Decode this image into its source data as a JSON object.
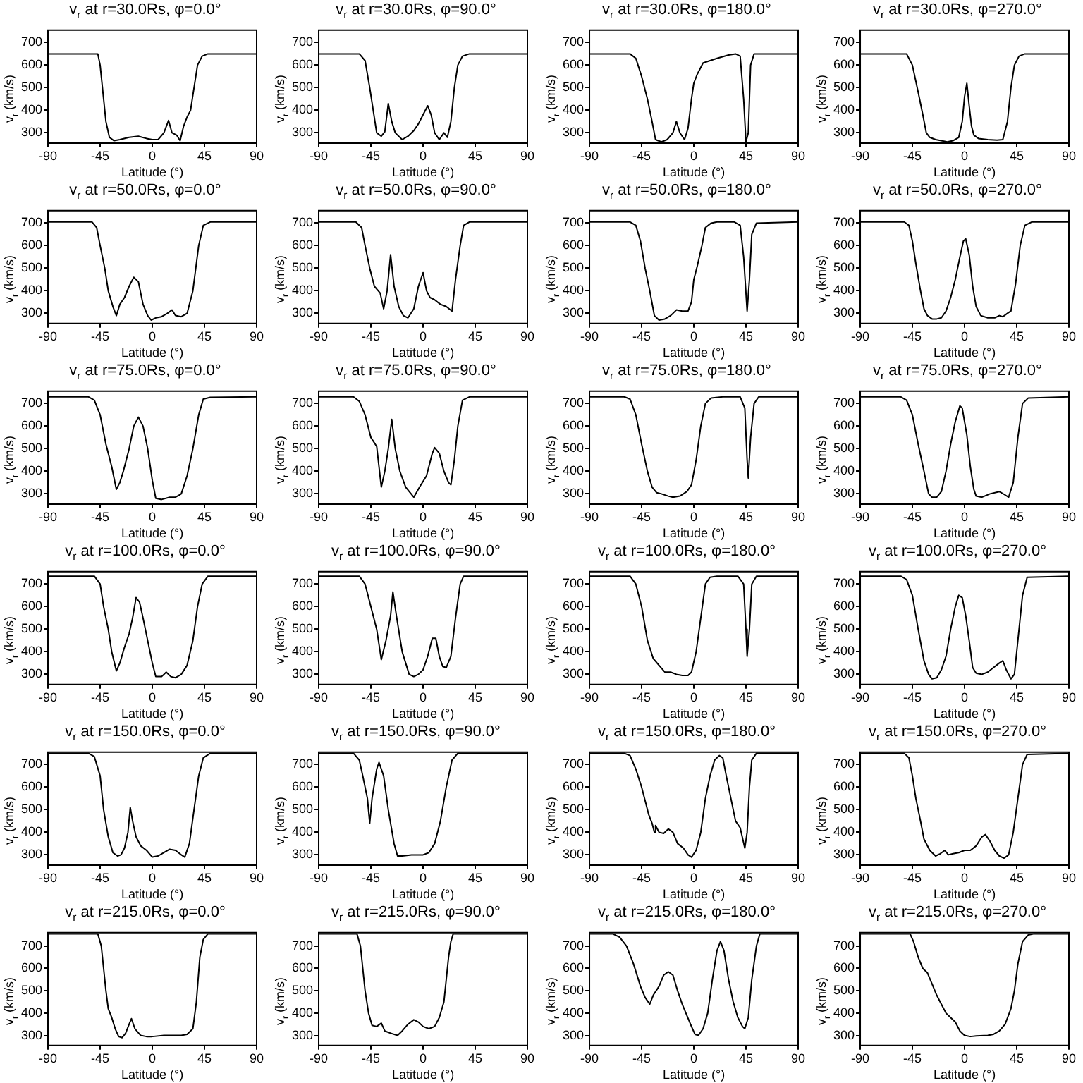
{
  "chart_data": [
    {
      "type": "line",
      "title": "v$_{r}$ at r=30.0Rs, φ=0.0°",
      "xlabel": "Latitude (°)",
      "ylabel": "v$_{r}$ (km/s)",
      "xlim": [
        -90,
        90
      ],
      "xticks": [
        -90,
        -45,
        0,
        45,
        90
      ],
      "ylim": [
        255,
        755
      ],
      "yticks": [
        300,
        400,
        500,
        600,
        700
      ],
      "series": [
        {
          "color": "#000000",
          "x": [
            -90,
            -47,
            -45,
            -42,
            -40,
            -37,
            -33,
            -28,
            -20,
            -12,
            -5,
            0,
            5,
            10,
            14,
            17,
            21,
            24,
            27,
            30,
            33,
            36,
            39,
            43,
            48,
            90
          ],
          "values": [
            650,
            650,
            600,
            450,
            350,
            280,
            265,
            270,
            280,
            285,
            275,
            270,
            270,
            300,
            355,
            300,
            290,
            265,
            330,
            370,
            400,
            500,
            600,
            640,
            650,
            650
          ]
        }
      ]
    },
    {
      "type": "line",
      "title": "v$_{r}$ at r=30.0Rs, φ=90.0°",
      "xlabel": "Latitude (°)",
      "ylabel": "v$_{r}$ (km/s)",
      "xlim": [
        -90,
        90
      ],
      "xticks": [
        -90,
        -45,
        0,
        45,
        90
      ],
      "ylim": [
        255,
        755
      ],
      "yticks": [
        300,
        400,
        500,
        600,
        700
      ],
      "series": [
        {
          "color": "#000000",
          "x": [
            -90,
            -55,
            -50,
            -46,
            -43,
            -40,
            -36,
            -33,
            -30,
            -27,
            -24,
            -18,
            -13,
            -8,
            -4,
            0,
            4,
            7,
            10,
            14,
            18,
            21,
            24,
            27,
            30,
            34,
            40,
            90
          ],
          "values": [
            650,
            650,
            620,
            500,
            400,
            300,
            285,
            305,
            430,
            350,
            300,
            270,
            285,
            310,
            340,
            380,
            420,
            380,
            300,
            270,
            300,
            280,
            350,
            500,
            600,
            640,
            650,
            650
          ]
        }
      ]
    },
    {
      "type": "line",
      "title": "v$_{r}$ at r=30.0Rs, φ=180.0°",
      "xlabel": "Latitude (°)",
      "ylabel": "v$_{r}$ (km/s)",
      "xlim": [
        -90,
        90
      ],
      "xticks": [
        -90,
        -45,
        0,
        45,
        90
      ],
      "ylim": [
        255,
        755
      ],
      "yticks": [
        300,
        400,
        500,
        600,
        700
      ],
      "series": [
        {
          "color": "#000000",
          "x": [
            -90,
            -55,
            -50,
            -45,
            -40,
            -36,
            -33,
            -28,
            -23,
            -18,
            -15,
            -12,
            -8,
            -5,
            -2,
            0,
            3,
            8,
            20,
            30,
            36,
            40,
            43,
            45,
            47,
            49,
            52,
            90
          ],
          "values": [
            650,
            650,
            630,
            550,
            450,
            350,
            270,
            260,
            270,
            300,
            350,
            300,
            270,
            320,
            450,
            520,
            560,
            610,
            630,
            645,
            650,
            640,
            450,
            260,
            300,
            600,
            650,
            650
          ]
        }
      ]
    },
    {
      "type": "line",
      "title": "v$_{r}$ at r=30.0Rs, φ=270.0°",
      "xlabel": "Latitude (°)",
      "ylabel": "v$_{r}$ (km/s)",
      "xlim": [
        -90,
        90
      ],
      "xticks": [
        -90,
        -45,
        0,
        45,
        90
      ],
      "ylim": [
        255,
        755
      ],
      "yticks": [
        300,
        400,
        500,
        600,
        700
      ],
      "series": [
        {
          "color": "#000000",
          "x": [
            -90,
            -50,
            -45,
            -40,
            -36,
            -33,
            -30,
            -25,
            -20,
            -15,
            -10,
            -5,
            -2,
            0,
            2,
            4,
            6,
            8,
            12,
            20,
            28,
            33,
            37,
            40,
            43,
            47,
            52,
            90
          ],
          "values": [
            650,
            650,
            600,
            480,
            380,
            300,
            280,
            270,
            265,
            260,
            265,
            280,
            350,
            460,
            520,
            420,
            330,
            290,
            275,
            270,
            268,
            270,
            350,
            500,
            600,
            640,
            650,
            650
          ]
        }
      ]
    },
    {
      "type": "line",
      "title": "v$_{r}$ at r=50.0Rs, φ=0.0°",
      "xlabel": "Latitude (°)",
      "ylabel": "v$_{r}$ (km/s)",
      "xlim": [
        -90,
        90
      ],
      "xticks": [
        -90,
        -45,
        0,
        45,
        90
      ],
      "ylim": [
        255,
        755
      ],
      "yticks": [
        300,
        400,
        500,
        600,
        700
      ],
      "series": [
        {
          "color": "#000000",
          "x": [
            -90,
            -52,
            -48,
            -45,
            -41,
            -38,
            -34,
            -31,
            -28,
            -24,
            -20,
            -16,
            -12,
            -8,
            -4,
            -1,
            3,
            8,
            13,
            17,
            20,
            25,
            30,
            35,
            40,
            44,
            50,
            90
          ],
          "values": [
            705,
            705,
            680,
            600,
            500,
            400,
            330,
            290,
            340,
            370,
            420,
            460,
            440,
            340,
            290,
            270,
            280,
            285,
            300,
            315,
            290,
            285,
            300,
            400,
            600,
            690,
            705,
            705
          ]
        }
      ]
    },
    {
      "type": "line",
      "title": "v$_{r}$ at r=50.0Rs, φ=90.0°",
      "xlabel": "Latitude (°)",
      "ylabel": "v$_{r}$ (km/s)",
      "xlim": [
        -90,
        90
      ],
      "xticks": [
        -90,
        -45,
        0,
        45,
        90
      ],
      "ylim": [
        255,
        755
      ],
      "yticks": [
        300,
        400,
        500,
        600,
        700
      ],
      "series": [
        {
          "color": "#000000",
          "x": [
            -90,
            -58,
            -53,
            -50,
            -46,
            -42,
            -37,
            -34,
            -31,
            -28,
            -25,
            -21,
            -17,
            -13,
            -8,
            -4,
            0,
            3,
            6,
            10,
            15,
            20,
            25,
            28,
            32,
            35,
            40,
            90
          ],
          "values": [
            705,
            705,
            680,
            600,
            500,
            420,
            390,
            320,
            400,
            560,
            420,
            330,
            290,
            280,
            320,
            420,
            480,
            400,
            370,
            360,
            340,
            330,
            310,
            450,
            600,
            690,
            705,
            705
          ]
        }
      ]
    },
    {
      "type": "line",
      "title": "v$_{r}$ at r=50.0Rs, φ=180.0°",
      "xlabel": "Latitude (°)",
      "ylabel": "v$_{r}$ (km/s)",
      "xlim": [
        -90,
        90
      ],
      "xticks": [
        -90,
        -45,
        0,
        45,
        90
      ],
      "ylim": [
        255,
        755
      ],
      "yticks": [
        300,
        400,
        500,
        600,
        700
      ],
      "series": [
        {
          "color": "#000000",
          "x": [
            -90,
            -55,
            -50,
            -46,
            -42,
            -38,
            -34,
            -30,
            -25,
            -20,
            -15,
            -10,
            -5,
            -2,
            0,
            3,
            7,
            10,
            15,
            20,
            35,
            40,
            43,
            46,
            48,
            50,
            54,
            90
          ],
          "values": [
            705,
            705,
            690,
            620,
            500,
            400,
            290,
            270,
            275,
            290,
            315,
            310,
            310,
            350,
            450,
            510,
            600,
            680,
            700,
            705,
            705,
            690,
            550,
            310,
            450,
            650,
            700,
            705
          ]
        }
      ]
    },
    {
      "type": "line",
      "title": "v$_{r}$ at r=50.0Rs, φ=270.0°",
      "xlabel": "Latitude (°)",
      "ylabel": "v$_{r}$ (km/s)",
      "xlim": [
        -90,
        90
      ],
      "xticks": [
        -90,
        -45,
        0,
        45,
        90
      ],
      "ylim": [
        255,
        755
      ],
      "yticks": [
        300,
        400,
        500,
        600,
        700
      ],
      "series": [
        {
          "color": "#000000",
          "x": [
            -90,
            -52,
            -48,
            -45,
            -42,
            -38,
            -35,
            -32,
            -28,
            -24,
            -20,
            -16,
            -12,
            -8,
            -4,
            -1,
            1,
            4,
            7,
            10,
            14,
            20,
            26,
            30,
            33,
            37,
            40,
            44,
            48,
            52,
            58,
            90
          ],
          "values": [
            705,
            705,
            690,
            620,
            520,
            400,
            320,
            290,
            275,
            275,
            280,
            310,
            370,
            450,
            550,
            620,
            630,
            560,
            420,
            330,
            290,
            280,
            280,
            290,
            285,
            300,
            310,
            430,
            600,
            690,
            705,
            705
          ]
        }
      ]
    },
    {
      "type": "line",
      "title": "v$_{r}$ at r=75.0Rs, φ=0.0°",
      "xlabel": "Latitude (°)",
      "ylabel": "v$_{r}$ (km/s)",
      "xlim": [
        -90,
        90
      ],
      "xticks": [
        -90,
        -45,
        0,
        45,
        90
      ],
      "ylim": [
        255,
        755
      ],
      "yticks": [
        300,
        400,
        500,
        600,
        700
      ],
      "series": [
        {
          "color": "#000000",
          "x": [
            -90,
            -55,
            -50,
            -45,
            -40,
            -35,
            -31,
            -28,
            -25,
            -20,
            -16,
            -12,
            -8,
            -4,
            0,
            3,
            8,
            15,
            20,
            25,
            30,
            35,
            40,
            44,
            50,
            90
          ],
          "values": [
            730,
            730,
            715,
            650,
            520,
            420,
            320,
            350,
            400,
            500,
            600,
            640,
            600,
            500,
            360,
            280,
            275,
            285,
            285,
            300,
            380,
            500,
            650,
            720,
            728,
            730
          ]
        }
      ]
    },
    {
      "type": "line",
      "title": "v$_{r}$ at r=75.0Rs, φ=90.0°",
      "xlabel": "Latitude (°)",
      "ylabel": "v$_{r}$ (km/s)",
      "xlim": [
        -90,
        90
      ],
      "xticks": [
        -90,
        -45,
        0,
        45,
        90
      ],
      "ylim": [
        255,
        755
      ],
      "yticks": [
        300,
        400,
        500,
        600,
        700
      ],
      "series": [
        {
          "color": "#000000",
          "x": [
            -90,
            -60,
            -55,
            -50,
            -45,
            -40,
            -36,
            -33,
            -30,
            -27,
            -24,
            -20,
            -15,
            -8,
            -3,
            3,
            8,
            10,
            14,
            18,
            22,
            24,
            27,
            30,
            34,
            40,
            90
          ],
          "values": [
            730,
            730,
            710,
            650,
            550,
            510,
            330,
            400,
            500,
            630,
            500,
            400,
            330,
            285,
            330,
            380,
            480,
            505,
            480,
            400,
            350,
            340,
            450,
            600,
            715,
            730,
            730
          ]
        }
      ]
    },
    {
      "type": "line",
      "title": "v$_{r}$ at r=75.0Rs, φ=180.0°",
      "xlabel": "Latitude (°)",
      "ylabel": "v$_{r}$ (km/s)",
      "xlim": [
        -90,
        90
      ],
      "xticks": [
        -90,
        -45,
        0,
        45,
        90
      ],
      "ylim": [
        255,
        755
      ],
      "yticks": [
        300,
        400,
        500,
        600,
        700
      ],
      "series": [
        {
          "color": "#000000",
          "x": [
            -90,
            -60,
            -55,
            -50,
            -45,
            -40,
            -36,
            -32,
            -28,
            -22,
            -18,
            -12,
            -6,
            -2,
            2,
            6,
            10,
            15,
            25,
            40,
            44,
            46,
            47,
            49,
            52,
            56,
            90
          ],
          "values": [
            730,
            730,
            720,
            650,
            520,
            400,
            330,
            305,
            300,
            290,
            285,
            290,
            310,
            340,
            450,
            600,
            700,
            725,
            730,
            730,
            680,
            450,
            370,
            550,
            700,
            730,
            730
          ]
        }
      ]
    },
    {
      "type": "line",
      "title": "v$_{r}$ at r=75.0Rs, φ=270.0°",
      "xlabel": "Latitude (°)",
      "ylabel": "v$_{r}$ (km/s)",
      "xlim": [
        -90,
        90
      ],
      "xticks": [
        -90,
        -45,
        0,
        45,
        90
      ],
      "ylim": [
        255,
        755
      ],
      "yticks": [
        300,
        400,
        500,
        600,
        700
      ],
      "series": [
        {
          "color": "#000000",
          "x": [
            -90,
            -55,
            -50,
            -45,
            -40,
            -35,
            -31,
            -28,
            -24,
            -20,
            -16,
            -12,
            -8,
            -4,
            -2,
            2,
            5,
            8,
            10,
            15,
            22,
            30,
            35,
            38,
            42,
            46,
            50,
            55,
            90
          ],
          "values": [
            730,
            730,
            715,
            650,
            520,
            400,
            300,
            285,
            285,
            310,
            400,
            520,
            620,
            690,
            680,
            560,
            420,
            320,
            290,
            285,
            300,
            310,
            295,
            285,
            350,
            550,
            700,
            725,
            730
          ]
        }
      ]
    },
    {
      "type": "line",
      "title": "v$_{r}$ at r=100.0Rs, φ=0.0°",
      "xlabel": "Latitude (°)",
      "ylabel": "v$_{r}$ (km/s)",
      "xlim": [
        -90,
        90
      ],
      "xticks": [
        -90,
        -45,
        0,
        45,
        90
      ],
      "ylim": [
        255,
        755
      ],
      "yticks": [
        300,
        400,
        500,
        600,
        700
      ],
      "series": [
        {
          "color": "#000000",
          "x": [
            -90,
            -50,
            -45,
            -42,
            -38,
            -35,
            -31,
            -28,
            -24,
            -20,
            -17,
            -14,
            -11,
            -8,
            -4,
            0,
            3,
            8,
            12,
            16,
            20,
            25,
            30,
            35,
            39,
            43,
            48,
            90
          ],
          "values": [
            735,
            735,
            700,
            600,
            500,
            400,
            315,
            350,
            420,
            480,
            550,
            640,
            620,
            550,
            450,
            350,
            290,
            290,
            310,
            290,
            285,
            300,
            340,
            450,
            600,
            700,
            735,
            735
          ]
        }
      ]
    },
    {
      "type": "line",
      "title": "v$_{r}$ at r=100.0Rs, φ=90.0°",
      "xlabel": "Latitude (°)",
      "ylabel": "v$_{r}$ (km/s)",
      "xlim": [
        -90,
        90
      ],
      "xticks": [
        -90,
        -45,
        0,
        45,
        90
      ],
      "ylim": [
        255,
        755
      ],
      "yticks": [
        300,
        400,
        500,
        600,
        700
      ],
      "series": [
        {
          "color": "#000000",
          "x": [
            -90,
            -55,
            -50,
            -45,
            -40,
            -36,
            -32,
            -28,
            -26,
            -23,
            -18,
            -12,
            -8,
            -4,
            0,
            4,
            8,
            11,
            14,
            17,
            20,
            24,
            28,
            32,
            35,
            90
          ],
          "values": [
            735,
            735,
            700,
            600,
            500,
            365,
            450,
            560,
            665,
            560,
            400,
            300,
            290,
            300,
            320,
            380,
            460,
            460,
            380,
            335,
            330,
            380,
            550,
            700,
            735,
            735
          ]
        }
      ]
    },
    {
      "type": "line",
      "title": "v$_{r}$ at r=100.0Rs, φ=180.0°",
      "xlabel": "Latitude (°)",
      "ylabel": "v$_{r}$ (km/s)",
      "xlim": [
        -90,
        90
      ],
      "xticks": [
        -90,
        -45,
        0,
        45,
        90
      ],
      "ylim": [
        255,
        755
      ],
      "yticks": [
        300,
        400,
        500,
        600,
        700
      ],
      "series": [
        {
          "color": "#000000",
          "x": [
            -90,
            -55,
            -50,
            -45,
            -40,
            -35,
            -30,
            -25,
            -20,
            -15,
            -10,
            -5,
            -2,
            2,
            6,
            10,
            14,
            20,
            38,
            43,
            45,
            46,
            48,
            50,
            54,
            90
          ],
          "values": [
            735,
            735,
            700,
            600,
            450,
            370,
            340,
            310,
            310,
            300,
            295,
            295,
            310,
            400,
            550,
            700,
            730,
            735,
            735,
            700,
            500,
            380,
            500,
            700,
            735,
            735
          ]
        }
      ]
    },
    {
      "type": "line",
      "title": "v$_{r}$ at r=100.0Rs, φ=270.0°",
      "xlabel": "Latitude (°)",
      "ylabel": "v$_{r}$ (km/s)",
      "xlim": [
        -90,
        90
      ],
      "xticks": [
        -90,
        -45,
        0,
        45,
        90
      ],
      "ylim": [
        255,
        755
      ],
      "yticks": [
        300,
        400,
        500,
        600,
        700
      ],
      "series": [
        {
          "color": "#000000",
          "x": [
            -90,
            -55,
            -50,
            -45,
            -40,
            -35,
            -31,
            -28,
            -24,
            -20,
            -16,
            -12,
            -8,
            -5,
            -2,
            1,
            4,
            7,
            10,
            15,
            20,
            25,
            30,
            33,
            36,
            40,
            43,
            46,
            50,
            54,
            90
          ],
          "values": [
            735,
            735,
            720,
            650,
            500,
            360,
            300,
            280,
            285,
            320,
            380,
            500,
            600,
            650,
            640,
            560,
            450,
            330,
            305,
            300,
            310,
            330,
            350,
            360,
            320,
            280,
            300,
            450,
            650,
            730,
            735
          ]
        }
      ]
    },
    {
      "type": "line",
      "title": "v$_{r}$ at r=150.0Rs, φ=0.0°",
      "xlabel": "Latitude (°)",
      "ylabel": "v$_{r}$ (km/s)",
      "xlim": [
        -90,
        90
      ],
      "xticks": [
        -90,
        -45,
        0,
        45,
        90
      ],
      "ylim": [
        255,
        755
      ],
      "yticks": [
        300,
        400,
        500,
        600,
        700
      ],
      "series": [
        {
          "color": "#000000",
          "x": [
            -90,
            -55,
            -50,
            -45,
            -42,
            -38,
            -34,
            -30,
            -27,
            -24,
            -21,
            -19,
            -17,
            -14,
            -10,
            -5,
            0,
            5,
            10,
            15,
            20,
            25,
            28,
            32,
            36,
            40,
            44,
            50,
            90
          ],
          "values": [
            750,
            750,
            735,
            650,
            500,
            380,
            310,
            295,
            300,
            330,
            400,
            510,
            450,
            380,
            340,
            320,
            290,
            295,
            310,
            325,
            320,
            300,
            290,
            350,
            500,
            650,
            730,
            750,
            750
          ]
        }
      ]
    },
    {
      "type": "line",
      "title": "v$_{r}$ at r=150.0Rs, φ=90.0°",
      "xlabel": "Latitude (°)",
      "ylabel": "v$_{r}$ (km/s)",
      "xlim": [
        -90,
        90
      ],
      "xticks": [
        -90,
        -45,
        0,
        45,
        90
      ],
      "ylim": [
        255,
        755
      ],
      "yticks": [
        300,
        400,
        500,
        600,
        700
      ],
      "series": [
        {
          "color": "#000000",
          "x": [
            -90,
            -60,
            -55,
            -52,
            -48,
            -46,
            -44,
            -40,
            -38,
            -34,
            -30,
            -25,
            -22,
            -18,
            -10,
            -5,
            0,
            5,
            10,
            15,
            20,
            25,
            30,
            90
          ],
          "values": [
            750,
            750,
            720,
            650,
            550,
            440,
            550,
            680,
            710,
            650,
            500,
            350,
            295,
            295,
            300,
            300,
            300,
            310,
            350,
            450,
            600,
            720,
            750,
            750
          ]
        }
      ]
    },
    {
      "type": "line",
      "title": "v$_{r}$ at r=150.0Rs, φ=180.0°",
      "xlabel": "Latitude (°)",
      "ylabel": "v$_{r}$ (km/s)",
      "xlim": [
        -90,
        90
      ],
      "xticks": [
        -90,
        -45,
        0,
        45,
        90
      ],
      "ylim": [
        255,
        755
      ],
      "yticks": [
        300,
        400,
        500,
        600,
        700
      ],
      "series": [
        {
          "color": "#000000",
          "x": [
            -90,
            -60,
            -55,
            -50,
            -45,
            -42,
            -39,
            -36,
            -34,
            -33,
            -30,
            -26,
            -22,
            -18,
            -14,
            -9,
            -5,
            -2,
            2,
            6,
            10,
            14,
            18,
            22,
            25,
            28,
            32,
            36,
            40,
            44,
            46,
            48,
            50,
            54,
            90
          ],
          "values": [
            750,
            750,
            740,
            680,
            600,
            540,
            480,
            440,
            400,
            430,
            400,
            395,
            415,
            400,
            350,
            330,
            300,
            290,
            320,
            400,
            550,
            650,
            720,
            740,
            730,
            650,
            550,
            450,
            420,
            330,
            400,
            600,
            720,
            750,
            750
          ]
        }
      ]
    },
    {
      "type": "line",
      "title": "v$_{r}$ at r=150.0Rs, φ=270.0°",
      "xlabel": "Latitude (°)",
      "ylabel": "v$_{r}$ (km/s)",
      "xlim": [
        -90,
        90
      ],
      "xticks": [
        -90,
        -45,
        0,
        45,
        90
      ],
      "ylim": [
        255,
        755
      ],
      "yticks": [
        300,
        400,
        500,
        600,
        700
      ],
      "series": [
        {
          "color": "#000000",
          "x": [
            -90,
            -52,
            -48,
            -45,
            -42,
            -38,
            -35,
            -30,
            -25,
            -21,
            -17,
            -14,
            -10,
            -5,
            0,
            5,
            10,
            15,
            18,
            22,
            26,
            30,
            34,
            38,
            42,
            46,
            50,
            54,
            90
          ],
          "values": [
            750,
            750,
            730,
            650,
            550,
            450,
            370,
            320,
            295,
            305,
            320,
            300,
            305,
            310,
            320,
            320,
            340,
            380,
            390,
            360,
            320,
            295,
            285,
            300,
            400,
            550,
            700,
            745,
            750
          ]
        }
      ]
    },
    {
      "type": "line",
      "title": "v$_{r}$ at r=215.0Rs, φ=0.0°",
      "xlabel": "Latitude (°)",
      "ylabel": "v$_{r}$ (km/s)",
      "xlim": [
        -90,
        90
      ],
      "xticks": [
        -90,
        -45,
        0,
        45,
        90
      ],
      "ylim": [
        255,
        760
      ],
      "yticks": [
        300,
        400,
        500,
        600,
        700
      ],
      "series": [
        {
          "color": "#000000",
          "x": [
            -90,
            -47,
            -44,
            -42,
            -40,
            -38,
            -35,
            -32,
            -29,
            -26,
            -23,
            -20,
            -18,
            -15,
            -10,
            -5,
            0,
            10,
            20,
            25,
            30,
            35,
            38,
            41,
            44,
            48,
            90
          ],
          "values": [
            755,
            755,
            700,
            600,
            500,
            420,
            380,
            330,
            295,
            290,
            310,
            350,
            375,
            330,
            300,
            295,
            295,
            300,
            300,
            300,
            305,
            330,
            450,
            650,
            730,
            755,
            755
          ]
        }
      ]
    },
    {
      "type": "line",
      "title": "v$_{r}$ at r=215.0Rs, φ=90.0°",
      "xlabel": "Latitude (°)",
      "ylabel": "v$_{r}$ (km/s)",
      "xlim": [
        -90,
        90
      ],
      "xticks": [
        -90,
        -45,
        0,
        45,
        90
      ],
      "ylim": [
        255,
        760
      ],
      "yticks": [
        300,
        400,
        500,
        600,
        700
      ],
      "series": [
        {
          "color": "#000000",
          "x": [
            -90,
            -57,
            -54,
            -52,
            -50,
            -47,
            -44,
            -40,
            -36,
            -33,
            -28,
            -22,
            -18,
            -13,
            -8,
            -4,
            0,
            5,
            10,
            14,
            18,
            20,
            22,
            24,
            26,
            90
          ],
          "values": [
            755,
            755,
            700,
            600,
            500,
            400,
            345,
            340,
            355,
            320,
            310,
            300,
            320,
            350,
            370,
            360,
            340,
            330,
            340,
            380,
            450,
            550,
            650,
            720,
            755,
            755
          ]
        }
      ]
    },
    {
      "type": "line",
      "title": "v$_{r}$ at r=215.0Rs, φ=180.0°",
      "xlabel": "Latitude (°)",
      "ylabel": "v$_{r}$ (km/s)",
      "xlim": [
        -90,
        90
      ],
      "xticks": [
        -90,
        -45,
        0,
        45,
        90
      ],
      "ylim": [
        255,
        760
      ],
      "yticks": [
        300,
        400,
        500,
        600,
        700
      ],
      "series": [
        {
          "color": "#000000",
          "x": [
            -90,
            -70,
            -64,
            -58,
            -52,
            -46,
            -42,
            -38,
            -35,
            -30,
            -26,
            -22,
            -18,
            -14,
            -10,
            -6,
            -2,
            1,
            4,
            8,
            12,
            16,
            20,
            23,
            26,
            30,
            34,
            38,
            42,
            44,
            47,
            50,
            54,
            57,
            90
          ],
          "values": [
            755,
            755,
            740,
            700,
            620,
            520,
            470,
            440,
            480,
            520,
            570,
            585,
            570,
            500,
            440,
            390,
            340,
            305,
            300,
            330,
            400,
            550,
            680,
            720,
            680,
            550,
            450,
            380,
            340,
            330,
            380,
            550,
            700,
            755,
            755
          ]
        }
      ]
    },
    {
      "type": "line",
      "title": "v$_{r}$ at r=215.0Rs, φ=270.0°",
      "xlabel": "Latitude (°)",
      "ylabel": "v$_{r}$ (km/s)",
      "xlim": [
        -90,
        90
      ],
      "xticks": [
        -90,
        -45,
        0,
        45,
        90
      ],
      "ylim": [
        255,
        760
      ],
      "yticks": [
        300,
        400,
        500,
        600,
        700
      ],
      "series": [
        {
          "color": "#000000",
          "x": [
            -90,
            -47,
            -44,
            -40,
            -36,
            -32,
            -28,
            -24,
            -20,
            -16,
            -12,
            -8,
            -4,
            0,
            5,
            10,
            20,
            25,
            30,
            35,
            40,
            43,
            46,
            50,
            55,
            60,
            90
          ],
          "values": [
            755,
            755,
            720,
            650,
            600,
            580,
            530,
            480,
            440,
            400,
            380,
            360,
            320,
            300,
            295,
            298,
            300,
            305,
            320,
            350,
            420,
            500,
            620,
            720,
            750,
            755,
            755
          ]
        }
      ]
    }
  ]
}
